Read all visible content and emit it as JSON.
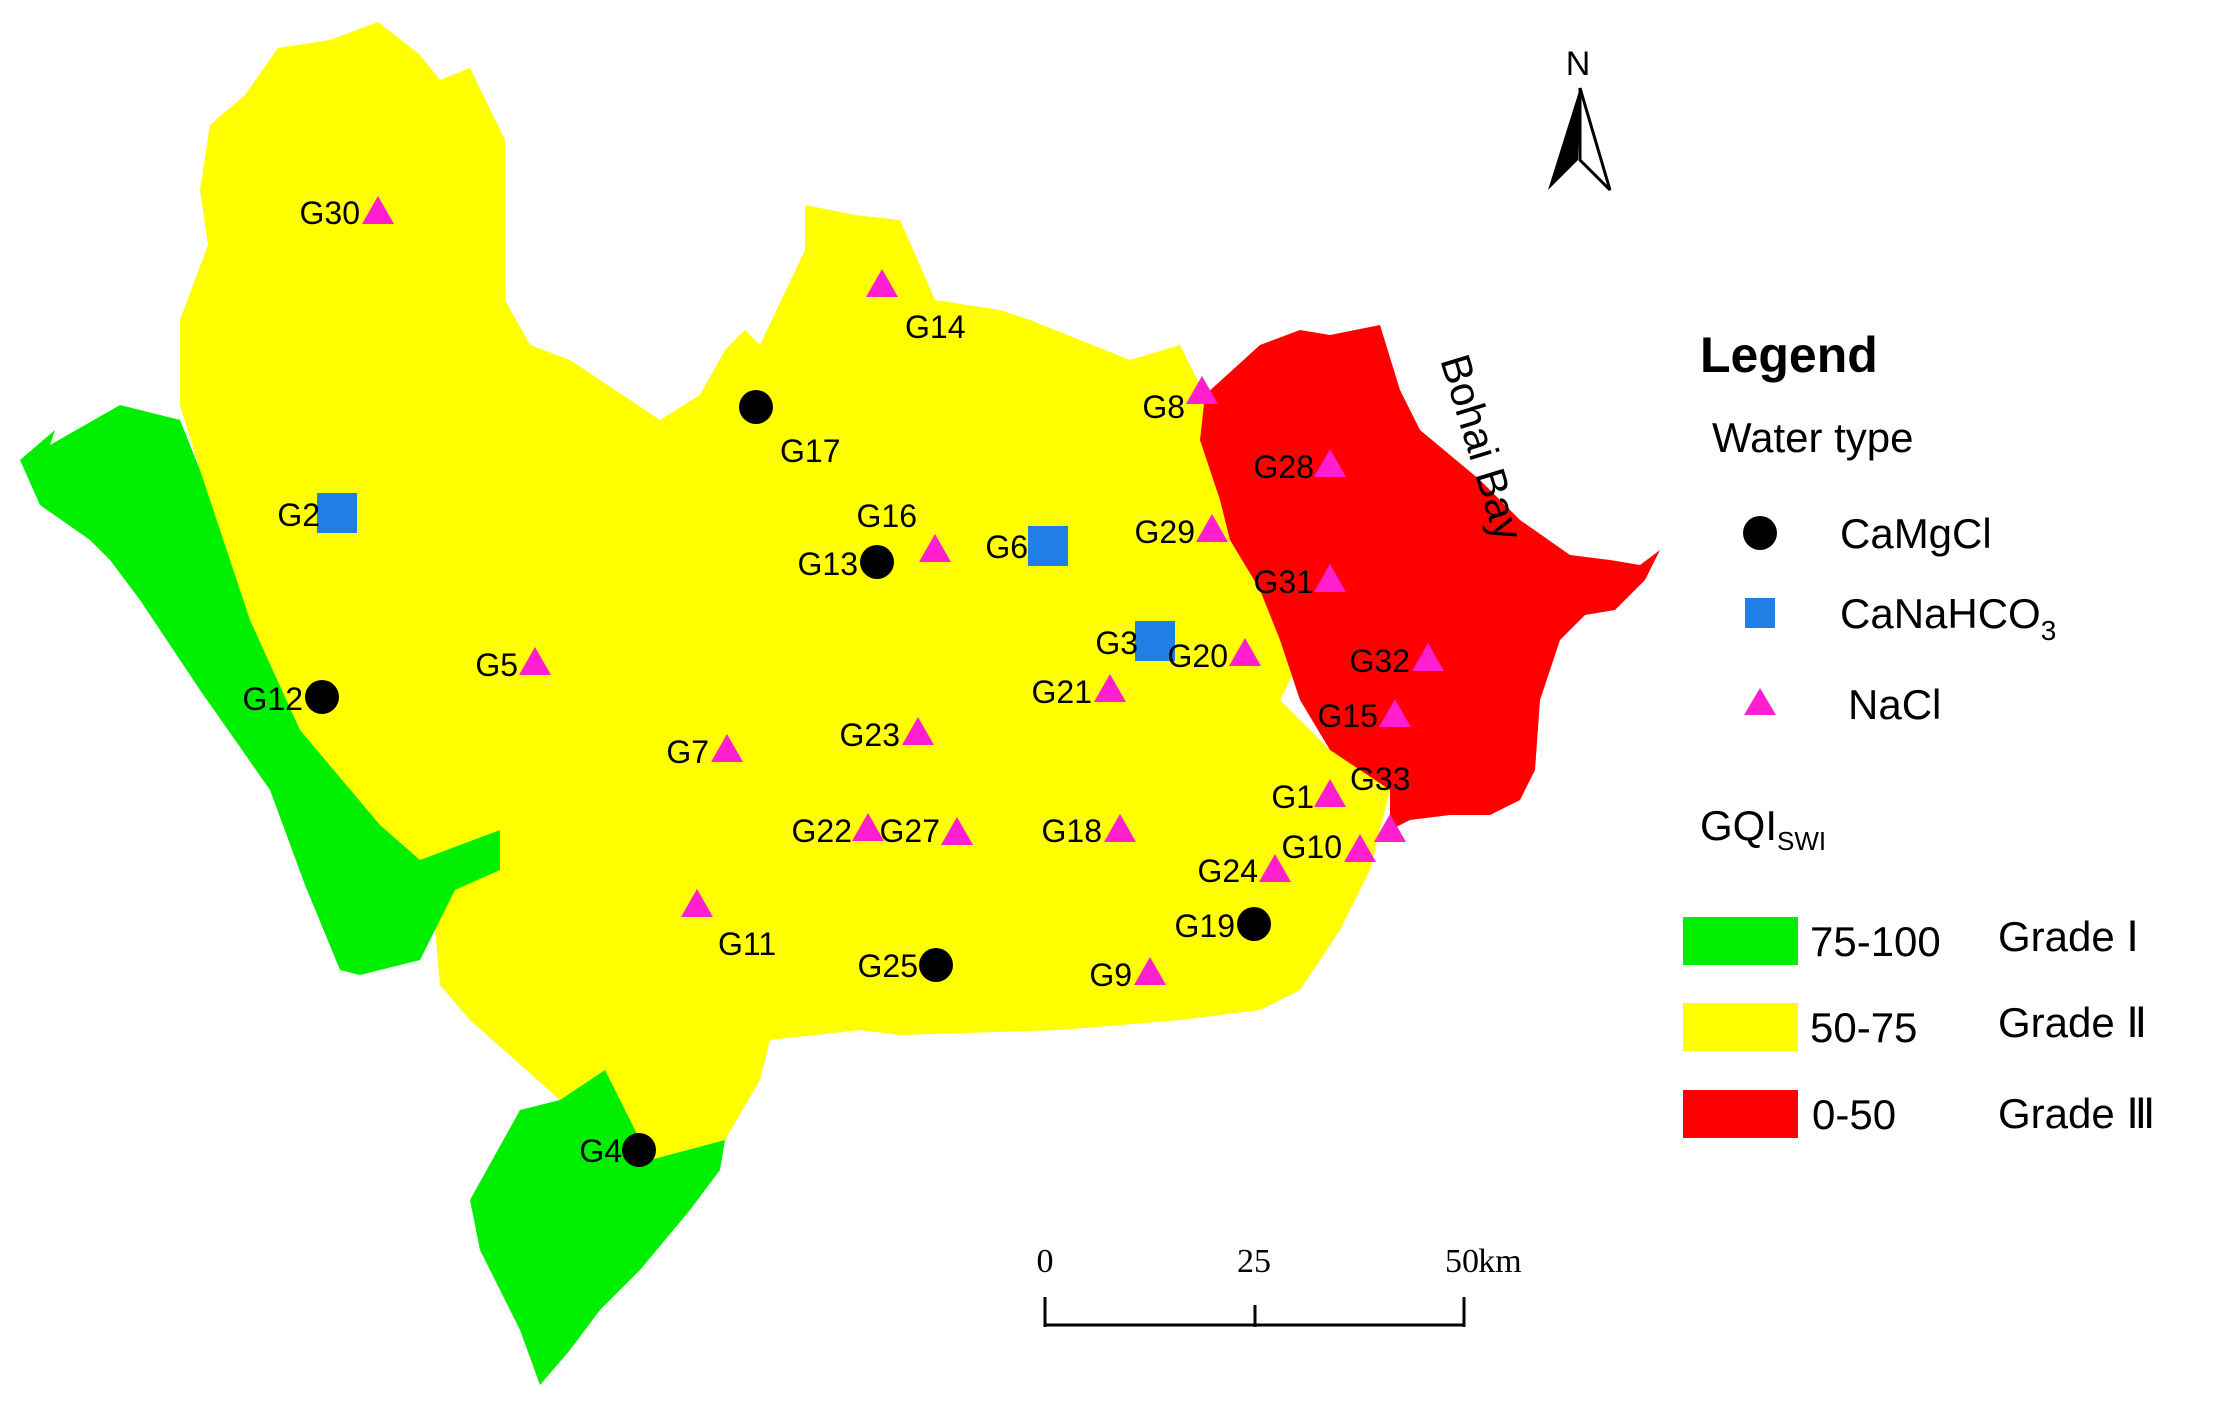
{
  "north_label": "N",
  "bay_label": "Bohai Bay",
  "legend": {
    "title": "Legend",
    "water_type_title": "Water type",
    "water_types": [
      {
        "label": "CaMgCl",
        "symbol": "circle",
        "color": "#000000"
      },
      {
        "label": "CaNaHCO",
        "sub": "3",
        "symbol": "square",
        "color": "#1f7fe6"
      },
      {
        "label": "NaCl",
        "symbol": "triangle",
        "color": "#ff1fcf"
      }
    ],
    "gqi_title": "GQI",
    "gqi_sub": "SWI",
    "grades": [
      {
        "range": "75-100",
        "grade": "Grade Ⅰ",
        "color": "#00ee00"
      },
      {
        "range": "50-75",
        "grade": "Grade Ⅱ",
        "color": "#ffff00"
      },
      {
        "range": "0-50",
        "grade": "Grade Ⅲ",
        "color": "#ff0000"
      }
    ]
  },
  "scale_bar": {
    "ticks": [
      "0",
      "25",
      "50"
    ],
    "unit": "km"
  },
  "sites": [
    {
      "id": "G30",
      "type": "NaCl"
    },
    {
      "id": "G14",
      "type": "NaCl"
    },
    {
      "id": "G17",
      "type": "CaMgCl"
    },
    {
      "id": "G8",
      "type": "NaCl"
    },
    {
      "id": "G28",
      "type": "NaCl"
    },
    {
      "id": "G2",
      "type": "CaNaHCO3"
    },
    {
      "id": "G16",
      "type": "NaCl"
    },
    {
      "id": "G13",
      "type": "CaMgCl"
    },
    {
      "id": "G6",
      "type": "CaNaHCO3"
    },
    {
      "id": "G29",
      "type": "NaCl"
    },
    {
      "id": "G31",
      "type": "NaCl"
    },
    {
      "id": "G3",
      "type": "CaNaHCO3"
    },
    {
      "id": "G20",
      "type": "NaCl"
    },
    {
      "id": "G32",
      "type": "NaCl"
    },
    {
      "id": "G5",
      "type": "NaCl"
    },
    {
      "id": "G12",
      "type": "CaMgCl"
    },
    {
      "id": "G21",
      "type": "NaCl"
    },
    {
      "id": "G15",
      "type": "NaCl"
    },
    {
      "id": "G23",
      "type": "NaCl"
    },
    {
      "id": "G7",
      "type": "NaCl"
    },
    {
      "id": "G1",
      "type": "NaCl"
    },
    {
      "id": "G33",
      "type": "NaCl"
    },
    {
      "id": "G22",
      "type": "NaCl"
    },
    {
      "id": "G27",
      "type": "NaCl"
    },
    {
      "id": "G18",
      "type": "NaCl"
    },
    {
      "id": "G10",
      "type": "NaCl"
    },
    {
      "id": "G24",
      "type": "NaCl"
    },
    {
      "id": "G11",
      "type": "NaCl"
    },
    {
      "id": "G19",
      "type": "CaMgCl"
    },
    {
      "id": "G25",
      "type": "CaMgCl"
    },
    {
      "id": "G9",
      "type": "NaCl"
    },
    {
      "id": "G4",
      "type": "CaMgCl"
    }
  ]
}
